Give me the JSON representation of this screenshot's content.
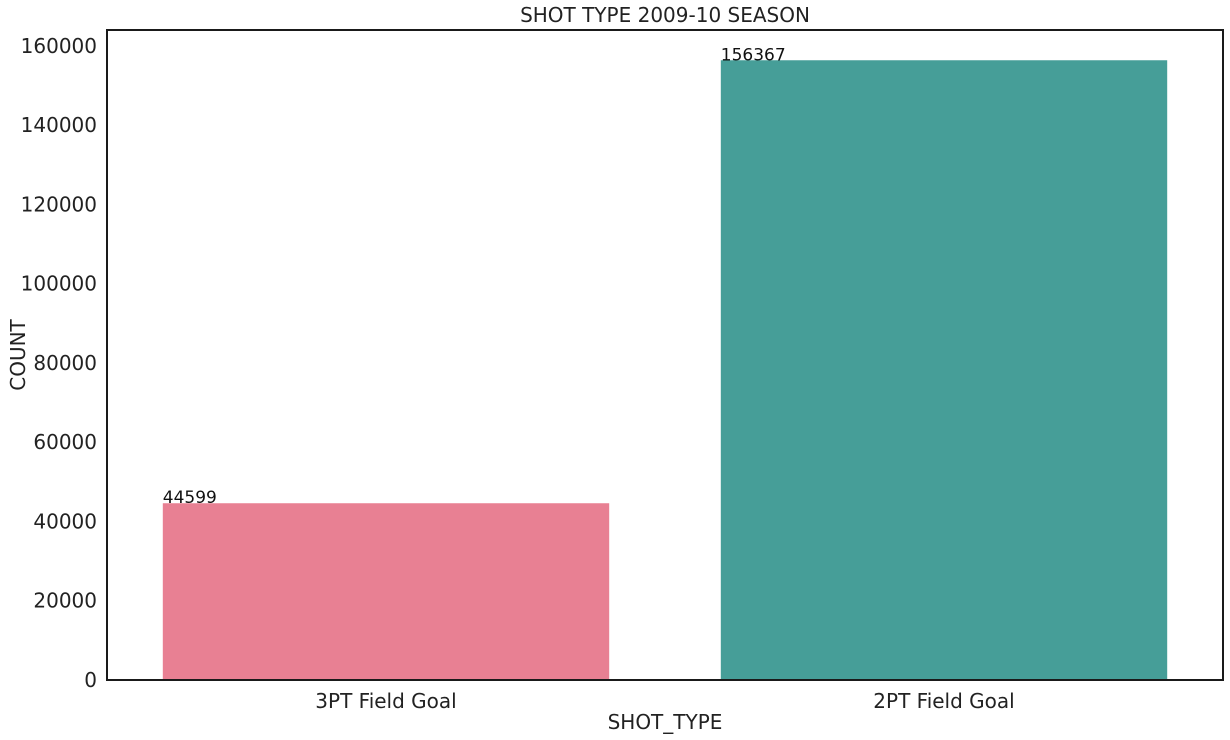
{
  "chart_data": {
    "type": "bar",
    "title": "SHOT TYPE 2009-10 SEASON",
    "xlabel": "SHOT_TYPE",
    "ylabel": "COUNT",
    "categories": [
      "3PT Field Goal",
      "2PT Field Goal"
    ],
    "values": [
      44599,
      156367
    ],
    "data_labels": [
      "44599",
      "156367"
    ],
    "colors": [
      "#e88093",
      "#469e98"
    ],
    "ylim": [
      0,
      164000
    ],
    "yticks": [
      0,
      20000,
      40000,
      60000,
      80000,
      100000,
      120000,
      140000,
      160000
    ],
    "ytick_labels": [
      "0",
      "20000",
      "40000",
      "60000",
      "80000",
      "100000",
      "120000",
      "140000",
      "160000"
    ],
    "grid": false,
    "legend": "none"
  }
}
